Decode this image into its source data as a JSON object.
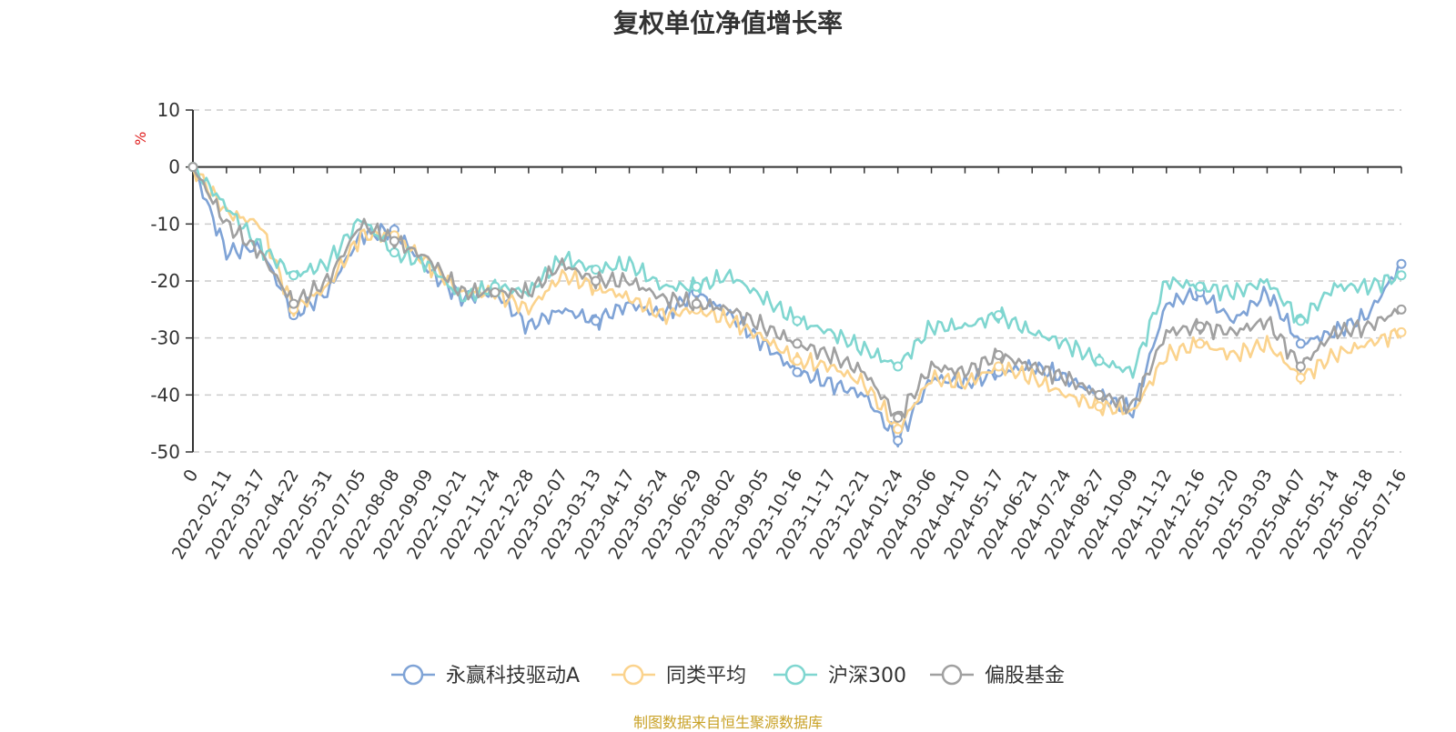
{
  "chart_data": {
    "type": "line",
    "title": "复权单位净值增长率",
    "ylabel": "%",
    "ylim": [
      -50,
      10
    ],
    "yticks": [
      10,
      0,
      -10,
      -20,
      -30,
      -40,
      -50
    ],
    "grid": true,
    "legend_position": "bottom-center",
    "x": [
      "0",
      "2022-02-11",
      "2022-03-17",
      "2022-04-22",
      "2022-05-31",
      "2022-07-05",
      "2022-08-08",
      "2022-09-09",
      "2022-10-21",
      "2022-11-24",
      "2022-12-28",
      "2023-02-07",
      "2023-03-13",
      "2023-04-17",
      "2023-05-24",
      "2023-06-29",
      "2023-08-02",
      "2023-09-05",
      "2023-10-16",
      "2023-11-17",
      "2023-12-21",
      "2024-01-24",
      "2024-03-06",
      "2024-04-10",
      "2024-05-17",
      "2024-06-21",
      "2024-07-24",
      "2024-08-27",
      "2024-10-09",
      "2024-11-12",
      "2024-12-16",
      "2025-01-20",
      "2025-03-03",
      "2025-04-07",
      "2025-05-14",
      "2025-06-18",
      "2025-07-16"
    ],
    "series": [
      {
        "name": "永赢科技驱动A",
        "color": "#7fa3d6",
        "values": [
          0,
          -15,
          -14,
          -26,
          -22,
          -12,
          -11,
          -18,
          -23,
          -22,
          -28,
          -25,
          -27,
          -24,
          -26,
          -22,
          -26,
          -31,
          -36,
          -38,
          -40,
          -48,
          -37,
          -38,
          -36,
          -35,
          -37,
          -40,
          -43,
          -24,
          -22,
          -27,
          -22,
          -31,
          -29,
          -26,
          -17
        ]
      },
      {
        "name": "同类平均",
        "color": "#fbd38d",
        "values": [
          0,
          -8,
          -10,
          -25,
          -21,
          -12,
          -12,
          -17,
          -22,
          -22,
          -25,
          -19,
          -21,
          -23,
          -26,
          -25,
          -27,
          -30,
          -34,
          -35,
          -38,
          -46,
          -37,
          -38,
          -35,
          -37,
          -40,
          -42,
          -43,
          -33,
          -31,
          -33,
          -31,
          -37,
          -33,
          -31,
          -29
        ]
      },
      {
        "name": "沪深300",
        "color": "#7fd6d0",
        "values": [
          0,
          -7,
          -14,
          -19,
          -17,
          -9,
          -15,
          -17,
          -23,
          -21,
          -22,
          -16,
          -18,
          -17,
          -21,
          -21,
          -19,
          -23,
          -27,
          -29,
          -32,
          -35,
          -28,
          -28,
          -26,
          -29,
          -31,
          -34,
          -36,
          -20,
          -21,
          -22,
          -20,
          -27,
          -21,
          -21,
          -19
        ]
      },
      {
        "name": "偏股基金",
        "color": "#a0a0a0",
        "values": [
          0,
          -10,
          -15,
          -24,
          -20,
          -10,
          -13,
          -16,
          -22,
          -22,
          -22,
          -17,
          -20,
          -20,
          -23,
          -24,
          -25,
          -28,
          -31,
          -33,
          -36,
          -44,
          -35,
          -36,
          -33,
          -35,
          -37,
          -40,
          -42,
          -29,
          -28,
          -29,
          -27,
          -35,
          -29,
          -28,
          -25
        ]
      }
    ]
  },
  "footer": {
    "source": "制图数据来自恒生聚源数据库"
  }
}
